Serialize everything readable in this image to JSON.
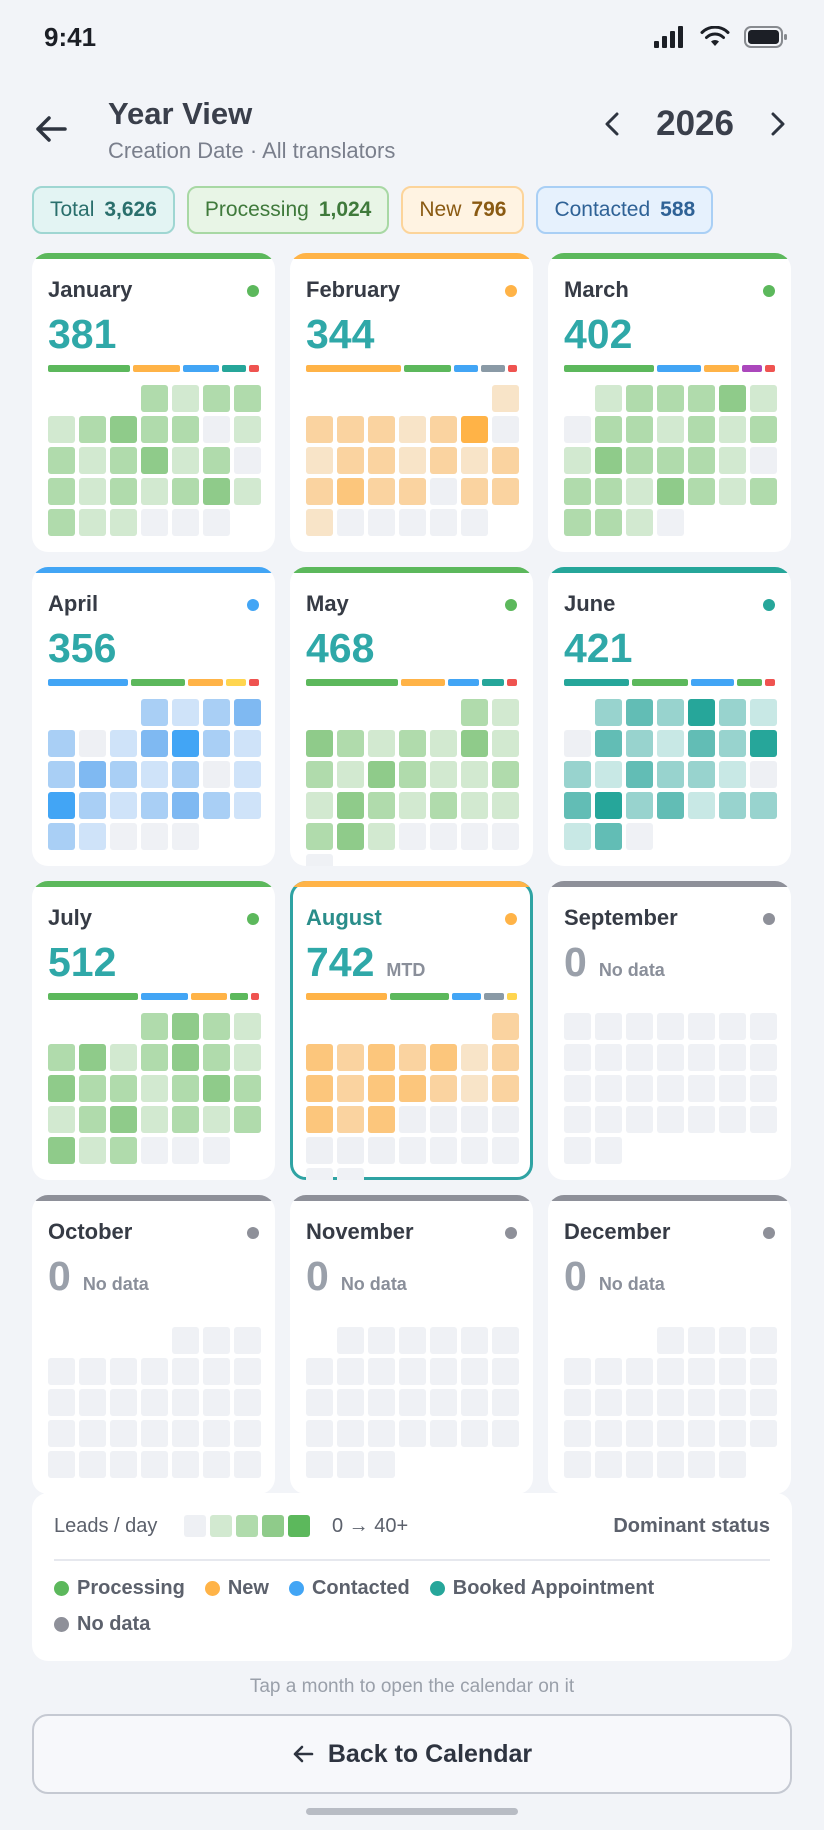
{
  "status": {
    "time": "9:41"
  },
  "header": {
    "title": "Year View",
    "subtitle": "Creation Date · All translators",
    "year": "2026"
  },
  "colors": {
    "processing": "#5cb85c",
    "new": "#ffb347",
    "contacted": "#42a5f5",
    "booked": "#26a69a",
    "nodata": "#8e9099",
    "slate": "#8a9aa6",
    "red": "#ef5350",
    "purple": "#ab47bc",
    "yellow": "#ffd54f",
    "teal_text": "#2fa8a8"
  },
  "chips": [
    {
      "label": "Total",
      "value": "3,626",
      "bg": "#e3f4f3",
      "border": "#9fd6d2",
      "fg": "#2a6f6c"
    },
    {
      "label": "Processing",
      "value": "1,024",
      "bg": "#e8f5e6",
      "border": "#a8d8a4",
      "fg": "#3f7a3b"
    },
    {
      "label": "New",
      "value": "796",
      "bg": "#fff3e2",
      "border": "#fcd49a",
      "fg": "#8a5a12"
    },
    {
      "label": "Contacted",
      "value": "588",
      "bg": "#e6f1fd",
      "border": "#a9cff5",
      "fg": "#2f6296"
    }
  ],
  "months": [
    {
      "name": "January",
      "count": "381",
      "sub": "",
      "status": "processing",
      "offset": 3,
      "days": 31,
      "segments": [
        [
          "processing",
          0.34
        ],
        [
          "new",
          0.2
        ],
        [
          "contacted",
          0.15
        ],
        [
          "booked",
          0.1
        ],
        [
          "red",
          0.04
        ]
      ],
      "levels": [
        2,
        1,
        2,
        2,
        1,
        2,
        3,
        2,
        2,
        0,
        1,
        2,
        1,
        2,
        3,
        1,
        2,
        0,
        2,
        1,
        2,
        1,
        2,
        3,
        1,
        2,
        1,
        1
      ]
    },
    {
      "name": "February",
      "count": "344",
      "sub": "",
      "status": "new",
      "offset": 6,
      "days": 28,
      "segments": [
        [
          "new",
          0.4
        ],
        [
          "processing",
          0.2
        ],
        [
          "contacted",
          0.1
        ],
        [
          "slate",
          0.1
        ],
        [
          "red",
          0.04
        ]
      ],
      "levels": [
        1,
        2,
        2,
        2,
        1,
        2,
        4,
        0,
        1,
        2,
        2,
        1,
        2,
        1,
        2,
        2,
        3,
        2,
        2,
        0,
        2,
        2,
        1
      ]
    },
    {
      "name": "March",
      "count": "402",
      "sub": "",
      "status": "processing",
      "offset": 1,
      "days": 31,
      "segments": [
        [
          "processing",
          0.36
        ],
        [
          "contacted",
          0.18
        ],
        [
          "new",
          0.14
        ],
        [
          "purple",
          0.08
        ],
        [
          "red",
          0.04
        ]
      ],
      "levels": [
        1,
        2,
        2,
        2,
        3,
        1,
        0,
        2,
        2,
        1,
        2,
        1,
        2,
        1,
        3,
        2,
        2,
        2,
        1,
        0,
        2,
        2,
        1,
        3,
        2,
        1,
        2,
        2,
        2,
        1
      ]
    },
    {
      "name": "April",
      "count": "356",
      "sub": "",
      "status": "contacted",
      "offset": 3,
      "days": 30,
      "segments": [
        [
          "contacted",
          0.32
        ],
        [
          "processing",
          0.22
        ],
        [
          "new",
          0.14
        ],
        [
          "yellow",
          0.08
        ],
        [
          "red",
          0.04
        ]
      ],
      "levels": [
        2,
        1,
        2,
        3,
        2,
        0,
        1,
        3,
        4,
        2,
        1,
        2,
        3,
        2,
        1,
        2,
        0,
        1,
        4,
        2,
        1,
        2,
        3,
        2,
        1,
        2,
        1
      ]
    },
    {
      "name": "May",
      "count": "468",
      "sub": "",
      "status": "processing",
      "offset": 5,
      "days": 31,
      "segments": [
        [
          "processing",
          0.38
        ],
        [
          "new",
          0.18
        ],
        [
          "contacted",
          0.13
        ],
        [
          "booked",
          0.09
        ],
        [
          "red",
          0.04
        ]
      ],
      "levels": [
        2,
        1,
        3,
        2,
        1,
        2,
        1,
        3,
        1,
        2,
        1,
        3,
        2,
        1,
        1,
        2,
        1,
        3,
        2,
        1,
        2,
        1,
        1,
        2,
        3,
        1
      ]
    },
    {
      "name": "June",
      "count": "421",
      "sub": "",
      "status": "booked",
      "offset": 1,
      "days": 30,
      "segments": [
        [
          "booked",
          0.26
        ],
        [
          "processing",
          0.22
        ],
        [
          "contacted",
          0.17
        ],
        [
          "processing",
          0.1
        ],
        [
          "red",
          0.04
        ]
      ],
      "levels": [
        2,
        3,
        2,
        4,
        2,
        1,
        0,
        3,
        2,
        1,
        3,
        2,
        4,
        2,
        1,
        3,
        2,
        2,
        1,
        0,
        3,
        4,
        2,
        3,
        1,
        2,
        2,
        1,
        3
      ]
    },
    {
      "name": "July",
      "count": "512",
      "sub": "",
      "status": "processing",
      "offset": 3,
      "days": 31,
      "segments": [
        [
          "processing",
          0.35
        ],
        [
          "contacted",
          0.18
        ],
        [
          "new",
          0.14
        ],
        [
          "processing",
          0.07
        ],
        [
          "red",
          0.03
        ]
      ],
      "levels": [
        2,
        3,
        2,
        1,
        2,
        3,
        1,
        2,
        3,
        2,
        1,
        3,
        2,
        2,
        1,
        2,
        3,
        2,
        1,
        2,
        3,
        1,
        2,
        1,
        2,
        3,
        1,
        2
      ]
    },
    {
      "name": "August",
      "count": "742",
      "sub": "MTD",
      "status": "new",
      "offset": 6,
      "days": 31,
      "selected": true,
      "segments": [
        [
          "new",
          0.33
        ],
        [
          "processing",
          0.24
        ],
        [
          "contacted",
          0.12
        ],
        [
          "slate",
          0.08
        ],
        [
          "yellow",
          0.04
        ]
      ],
      "levels": [
        2,
        3,
        2,
        3,
        2,
        3,
        1,
        2,
        3,
        2,
        3,
        3,
        2,
        1,
        2,
        3,
        2,
        3,
        0,
        0,
        0,
        0,
        0,
        0,
        0
      ]
    },
    {
      "name": "September",
      "count": "0",
      "sub": "No data",
      "status": "nodata",
      "offset": 0,
      "days": 30,
      "segments": [],
      "levels": []
    },
    {
      "name": "October",
      "count": "0",
      "sub": "No data",
      "status": "nodata",
      "offset": 4,
      "days": 31,
      "segments": [],
      "levels": []
    },
    {
      "name": "November",
      "count": "0",
      "sub": "No data",
      "status": "nodata",
      "offset": 1,
      "days": 30,
      "segments": [],
      "levels": []
    },
    {
      "name": "December",
      "count": "0",
      "sub": "No data",
      "status": "nodata",
      "offset": 3,
      "days": 31,
      "segments": [],
      "levels": []
    }
  ],
  "legend": {
    "label": "Leads / day",
    "range": "0 → 40+",
    "dominant_label": "Dominant status",
    "items": [
      {
        "label": "Processing",
        "status": "processing"
      },
      {
        "label": "New",
        "status": "new"
      },
      {
        "label": "Contacted",
        "status": "contacted"
      },
      {
        "label": "Booked Appointment",
        "status": "booked"
      },
      {
        "label": "No data",
        "status": "nodata"
      }
    ]
  },
  "hint": "Tap a month to open the calendar on it",
  "back_button": "Back to Calendar"
}
